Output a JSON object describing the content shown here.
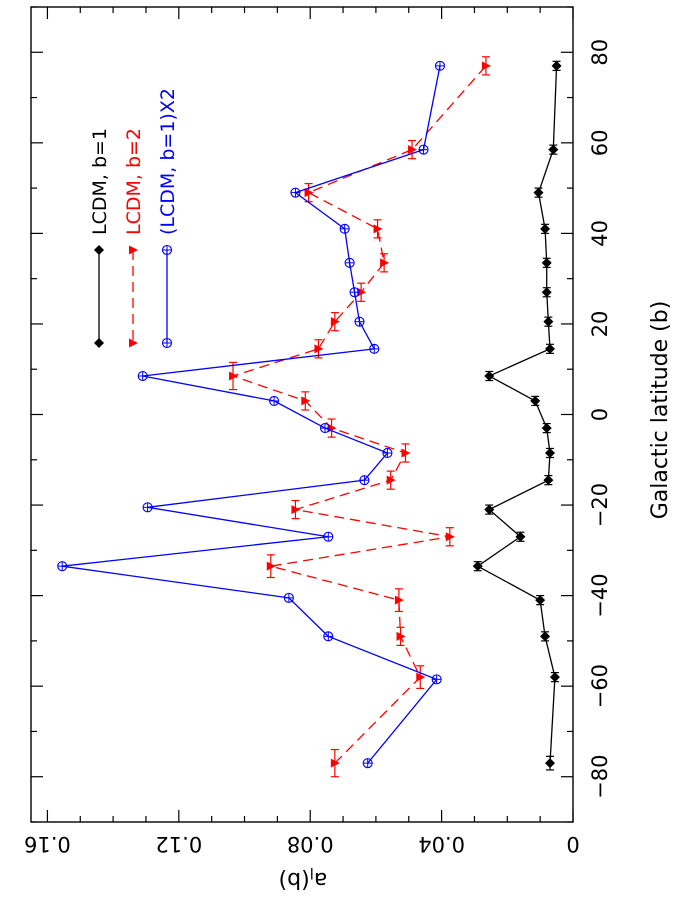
{
  "chart_data": {
    "type": "line",
    "orientation": "rotated-90-clockwise",
    "x_axis": {
      "label": "Galactic latitude (b)",
      "range": [
        -90,
        90
      ],
      "ticks": [
        -80,
        -60,
        -40,
        -20,
        0,
        20,
        40,
        60,
        80
      ],
      "tick_labels": [
        "−80",
        "−60",
        "−40",
        "−20",
        "0",
        "20",
        "40",
        "60",
        "80"
      ]
    },
    "y_axis": {
      "label": "a_l(b)",
      "label_main": "a",
      "label_sub": "l",
      "label_tail": "(b)",
      "range": [
        0,
        0.165
      ],
      "ticks": [
        0,
        0.04,
        0.08,
        0.12,
        0.16
      ],
      "tick_labels": [
        "0",
        "0.04",
        "0.08",
        "0.12",
        "0.16"
      ]
    },
    "grid": false,
    "legend_placement": "top-left",
    "series": [
      {
        "name": "LCDM, b=1",
        "color": "#000000",
        "marker": "filled-diamond",
        "line_style": "solid",
        "x": [
          -77,
          -58,
          -49,
          -41,
          -33.5,
          -27,
          -21,
          -14.5,
          -8.5,
          -3,
          3,
          8.5,
          14.5,
          20.5,
          27,
          33.5,
          41,
          49,
          58.5,
          77
        ],
        "y": [
          0.007,
          0.0055,
          0.0085,
          0.01,
          0.029,
          0.016,
          0.0255,
          0.0075,
          0.007,
          0.008,
          0.0115,
          0.0255,
          0.007,
          0.0075,
          0.008,
          0.008,
          0.0085,
          0.0105,
          0.006,
          0.005
        ],
        "xerr": [
          1.5,
          1,
          1,
          1,
          1,
          1,
          1,
          1,
          1,
          1,
          1,
          1,
          1,
          1,
          1,
          1,
          1,
          1,
          1,
          1
        ]
      },
      {
        "name": "LCDM, b=2",
        "color": "#ff0000",
        "marker": "filled-triangle",
        "line_style": "dashed",
        "x": [
          -77,
          -58,
          -49,
          -41,
          -33.5,
          -27,
          -21,
          -14.5,
          -8.5,
          -3,
          3,
          8.5,
          14.5,
          20.5,
          27,
          33.5,
          41,
          49,
          58.5,
          77
        ],
        "y": [
          0.0725,
          0.0465,
          0.0525,
          0.053,
          0.092,
          0.0375,
          0.0845,
          0.0555,
          0.051,
          0.0735,
          0.0815,
          0.1035,
          0.0775,
          0.0725,
          0.0645,
          0.0575,
          0.0595,
          0.0805,
          0.049,
          0.0265
        ],
        "xerr": [
          3,
          2.5,
          2,
          2.5,
          2.5,
          2,
          2,
          2,
          2,
          2,
          2,
          3,
          2,
          2,
          2,
          2,
          2,
          2,
          2,
          2
        ]
      },
      {
        "name": "(LCDM, b=1)X2",
        "name_main": "(LCDM, b=1)X2",
        "color": "#0000ff",
        "marker": "open-circle-plus",
        "line_style": "solid",
        "x": [
          -77,
          -58.5,
          -49,
          -40.5,
          -33.5,
          -27,
          -20.5,
          -14.5,
          -8.5,
          -3,
          3,
          8.5,
          14.5,
          20.5,
          27,
          33.5,
          41,
          49,
          58.5,
          77
        ],
        "y": [
          0.0625,
          0.0415,
          0.0745,
          0.0865,
          0.1555,
          0.0745,
          0.1295,
          0.0635,
          0.0565,
          0.0755,
          0.091,
          0.131,
          0.0605,
          0.065,
          0.0665,
          0.068,
          0.0695,
          0.0845,
          0.0455,
          0.0405
        ]
      }
    ]
  }
}
